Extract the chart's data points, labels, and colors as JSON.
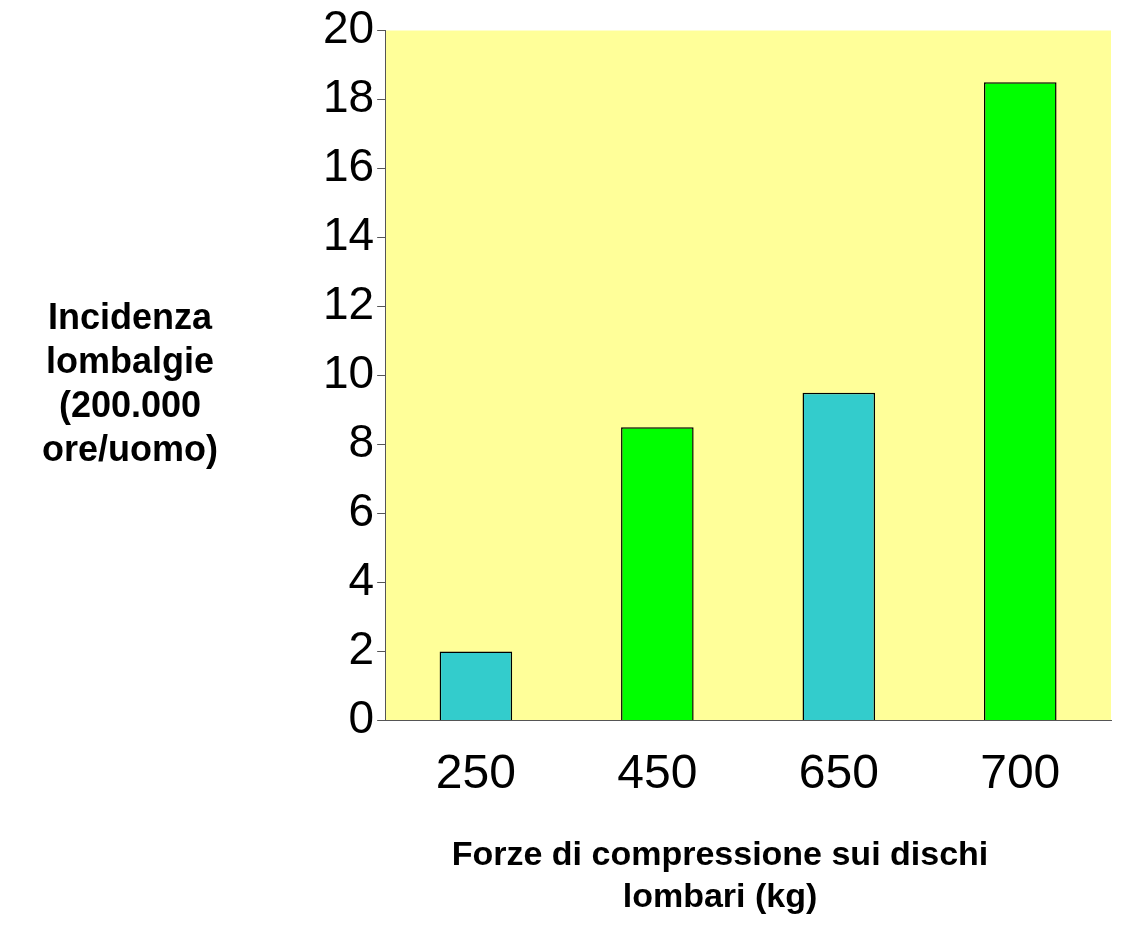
{
  "chart_data": {
    "type": "bar",
    "xlabel": "Forze di compressione sui dischi lombari (kg)",
    "ylabel": "Incidenza lombalgie (200.000 ore/uomo)",
    "categories": [
      "250",
      "450",
      "650",
      "700"
    ],
    "values": [
      2,
      8.5,
      9.5,
      18.5
    ],
    "colors": [
      "#33cccc",
      "#00ff00",
      "#33cccc",
      "#00ff00"
    ],
    "ylim": [
      0,
      20
    ],
    "yticks": [
      0,
      2,
      4,
      6,
      8,
      10,
      12,
      14,
      16,
      18,
      20
    ],
    "grid": false
  }
}
